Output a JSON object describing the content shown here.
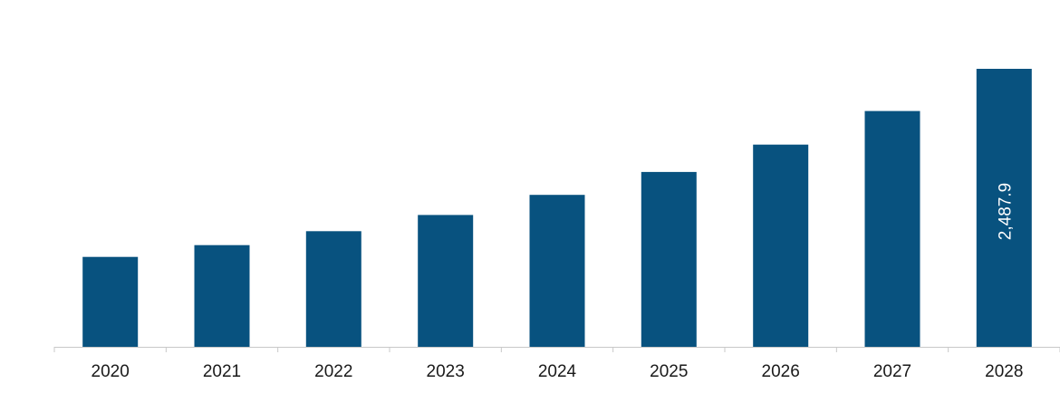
{
  "chart_data": {
    "type": "bar",
    "title": "",
    "xlabel": "",
    "ylabel": "",
    "categories": [
      "2020",
      "2021",
      "2022",
      "2023",
      "2024",
      "2025",
      "2026",
      "2027",
      "2028"
    ],
    "values": [
      805,
      910,
      1035,
      1180,
      1360,
      1565,
      1810,
      2110,
      2487.9
    ],
    "data_labels": [
      "",
      "",
      "",
      "",
      "",
      "",
      "",
      "",
      "2,487.9"
    ],
    "ylim": [
      0,
      2487.9
    ],
    "grid": false,
    "legend": "none",
    "bar_color": "#08527f",
    "axis_color": "#c8c8c8"
  }
}
